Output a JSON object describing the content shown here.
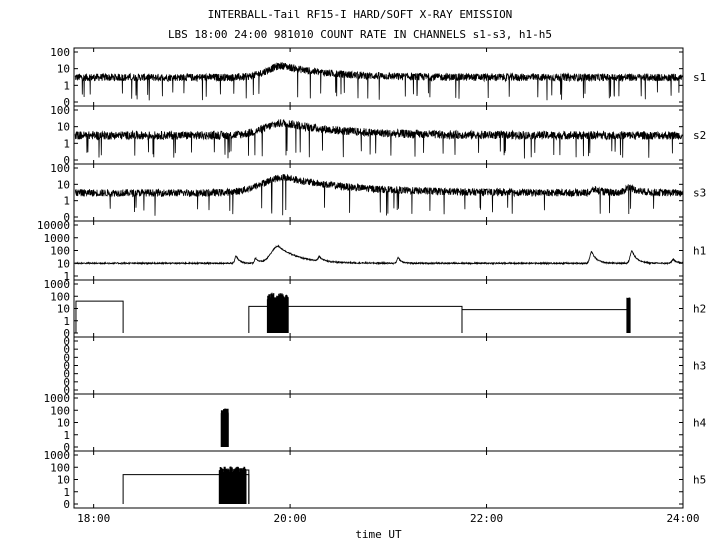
{
  "header": {
    "title": "INTERBALL-Tail RF15-I HARD/SOFT X-RAY EMISSION",
    "subtitle": "LBS 18:00 24:00 981010  COUNT RATE IN CHANNELS s1-s3, h1-h5"
  },
  "chart_data": {
    "type": "line",
    "x_axis": {
      "label": "time UT",
      "range_hours": [
        17.8,
        24.0
      ],
      "ticks": [
        {
          "value": 18,
          "label": "18:00"
        },
        {
          "value": 20,
          "label": "20:00"
        },
        {
          "value": 22,
          "label": "22:00"
        },
        {
          "value": 24,
          "label": "24:00"
        }
      ]
    },
    "scale": "log",
    "panels": [
      {
        "channel": "s1",
        "y_ticks": [
          "100",
          "10",
          "1",
          "0"
        ],
        "ymax_decades": 2,
        "baseline": 3,
        "noise": 0.45,
        "dropouts": 0.025,
        "bumps": [
          {
            "t": 19.93,
            "h": 0.7,
            "w": 0.55
          }
        ]
      },
      {
        "channel": "s2",
        "y_ticks": [
          "100",
          "10",
          "1",
          "0"
        ],
        "ymax_decades": 2,
        "baseline": 3,
        "noise": 0.5,
        "dropouts": 0.02,
        "bumps": [
          {
            "t": 19.95,
            "h": 0.75,
            "w": 0.7
          }
        ]
      },
      {
        "channel": "s3",
        "y_ticks": [
          "100",
          "10",
          "1",
          "0"
        ],
        "ymax_decades": 2,
        "baseline": 3,
        "noise": 0.45,
        "dropouts": 0.015,
        "bumps": [
          {
            "t": 19.95,
            "h": 0.95,
            "w": 0.8
          },
          {
            "t": 23.1,
            "h": 0.2,
            "w": 0.1
          },
          {
            "t": 23.45,
            "h": 0.35,
            "w": 0.12
          }
        ]
      },
      {
        "channel": "h1",
        "y_ticks": [
          "10000",
          "1000",
          "100",
          "10",
          "1"
        ],
        "ymax_decades": 4,
        "baseline": 10,
        "noise": 0.1,
        "dropouts": 0.0,
        "bumps": [
          {
            "t": 19.45,
            "h": 0.6,
            "w": 0.04
          },
          {
            "t": 19.65,
            "h": 0.4,
            "w": 0.04
          },
          {
            "t": 19.88,
            "h": 1.35,
            "w": 0.25
          },
          {
            "t": 20.3,
            "h": 0.35,
            "w": 0.05
          },
          {
            "t": 21.1,
            "h": 0.45,
            "w": 0.04
          },
          {
            "t": 23.07,
            "h": 0.9,
            "w": 0.06
          },
          {
            "t": 23.48,
            "h": 1.0,
            "w": 0.06
          },
          {
            "t": 23.9,
            "h": 0.3,
            "w": 0.05
          }
        ]
      },
      {
        "channel": "h2",
        "y_ticks": [
          "1000",
          "100",
          "10",
          "1",
          "0"
        ],
        "ymax_decades": 3,
        "steps": [
          {
            "t0": 17.82,
            "t1": 18.3,
            "v": 40
          },
          {
            "t0": 19.58,
            "t1": 21.75,
            "v": 15
          },
          {
            "t0": 21.75,
            "t1": 23.45,
            "v": 8
          }
        ],
        "bursts": [
          {
            "t0": 19.77,
            "t1": 19.98,
            "peak": 200
          },
          {
            "t0": 23.43,
            "t1": 23.46,
            "peak": 80
          }
        ]
      },
      {
        "channel": "h3",
        "y_ticks": [
          "0",
          "0",
          "0",
          "0",
          "0",
          "0",
          "0"
        ],
        "ymax_decades": 0,
        "steps": [],
        "bursts": []
      },
      {
        "channel": "h4",
        "y_ticks": [
          "1000",
          "100",
          "10",
          "1",
          "0"
        ],
        "ymax_decades": 3,
        "steps": [],
        "bursts": [
          {
            "t0": 19.3,
            "t1": 19.37,
            "peak": 150
          }
        ]
      },
      {
        "channel": "h5",
        "y_ticks": [
          "1000",
          "100",
          "10",
          "1",
          "0"
        ],
        "ymax_decades": 3,
        "steps": [
          {
            "t0": 18.3,
            "t1": 19.58,
            "v": 25
          },
          {
            "t0": 19.3,
            "t1": 19.58,
            "v": 60
          }
        ],
        "bursts": [
          {
            "t0": 19.28,
            "t1": 19.55,
            "peak": 120
          }
        ]
      }
    ]
  }
}
